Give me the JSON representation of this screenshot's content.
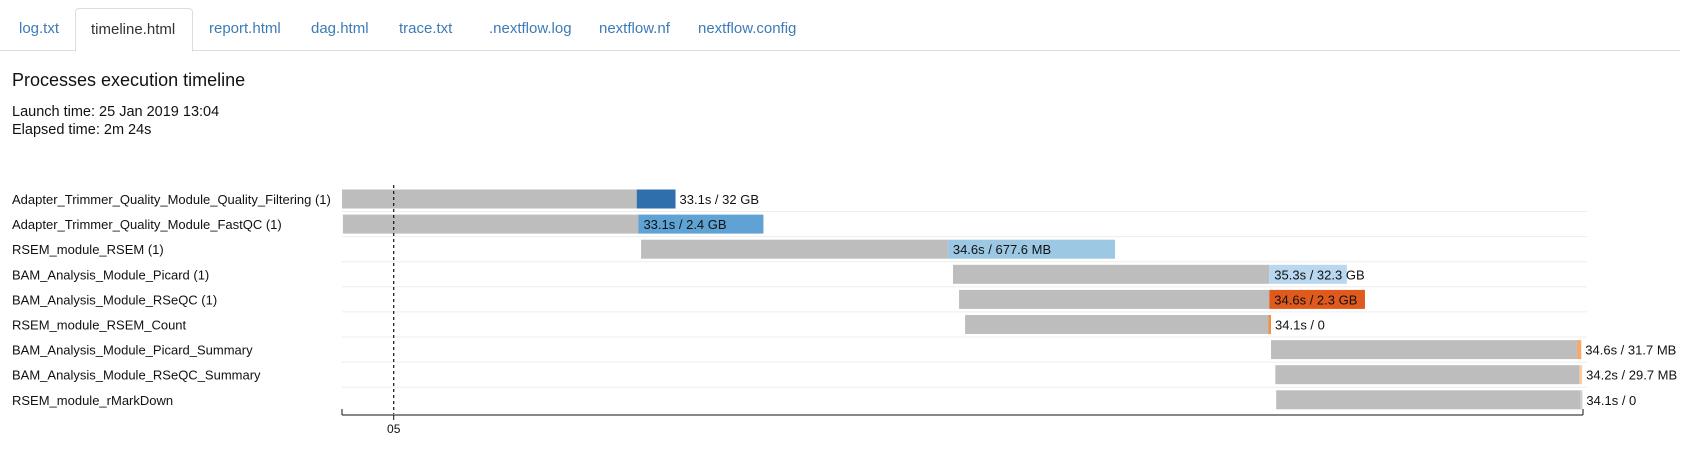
{
  "tabs": [
    {
      "label": "log.txt",
      "active": false
    },
    {
      "label": "timeline.html",
      "active": true
    },
    {
      "label": "report.html",
      "active": false
    },
    {
      "label": "dag.html",
      "active": false
    },
    {
      "label": "trace.txt",
      "active": false
    },
    {
      "label": ".nextflow.log",
      "active": false
    },
    {
      "label": "nextflow.nf",
      "active": false
    },
    {
      "label": "nextflow.config",
      "active": false
    }
  ],
  "page": {
    "title": "Processes execution timeline",
    "launch_time": "Launch time: 25 Jan 2019 13:04",
    "elapsed_time": "Elapsed time: 2m 24s"
  },
  "colors": {
    "wait_bar": "#bdbdbd",
    "row_rule": "#eeeeee",
    "tab_link": "#3e7bb6"
  },
  "chart_data": {
    "type": "gantt",
    "x_unit": "seconds since launch",
    "xlim": [
      0,
      144
    ],
    "x_ticks": [
      {
        "label": "05",
        "value": 6
      }
    ],
    "dashed_marker_at": 6,
    "rows": [
      {
        "name": "Adapter_Trimmer_Quality_Module_Quality_Filtering (1)",
        "submit": 0.0,
        "start": 34.2,
        "end": 38.7,
        "label": "33.1s / 32 GB",
        "color": "#2e6fac",
        "label_inside": false
      },
      {
        "name": "Adapter_Trimmer_Quality_Module_FastQC (1)",
        "submit": 0.1,
        "start": 34.4,
        "end": 48.9,
        "label": "33.1s / 2.4 GB",
        "color": "#5fa3d4",
        "label_inside": true
      },
      {
        "name": "RSEM_module_RSEM (1)",
        "submit": 34.7,
        "start": 70.3,
        "end": 89.7,
        "label": "34.6s / 677.6 MB",
        "color": "#9dc8e3",
        "label_inside": true
      },
      {
        "name": "BAM_Analysis_Module_Picard (1)",
        "submit": 70.9,
        "start": 107.6,
        "end": 116.6,
        "label": "35.3s / 32.3 GB",
        "color": "#b9d7ee",
        "label_inside": true
      },
      {
        "name": "BAM_Analysis_Module_RSeQC (1)",
        "submit": 71.6,
        "start": 107.6,
        "end": 118.7,
        "label": "34.6s / 2.3 GB",
        "color": "#e05a1e",
        "label_inside": true
      },
      {
        "name": "RSEM_module_RSEM_Count",
        "submit": 72.3,
        "start": 107.5,
        "end": 107.8,
        "label": "34.1s / 0",
        "color": "#f28e45",
        "label_inside": false
      },
      {
        "name": "BAM_Analysis_Module_Picard_Summary",
        "submit": 107.8,
        "start": 143.3,
        "end": 143.8,
        "label": "34.6s / 31.7 MB",
        "color": "#f6a96f",
        "label_inside": false
      },
      {
        "name": "BAM_Analysis_Module_RSeQC_Summary",
        "submit": 108.3,
        "start": 143.6,
        "end": 143.9,
        "label": "34.2s / 29.7 MB",
        "color": "#fbcba4",
        "label_inside": false
      },
      {
        "name": "RSEM_module_rMarkDown",
        "submit": 108.4,
        "start": 143.7,
        "end": 143.9,
        "label": "34.1s / 0",
        "color": "#cfcfcf",
        "label_inside": false
      }
    ]
  }
}
